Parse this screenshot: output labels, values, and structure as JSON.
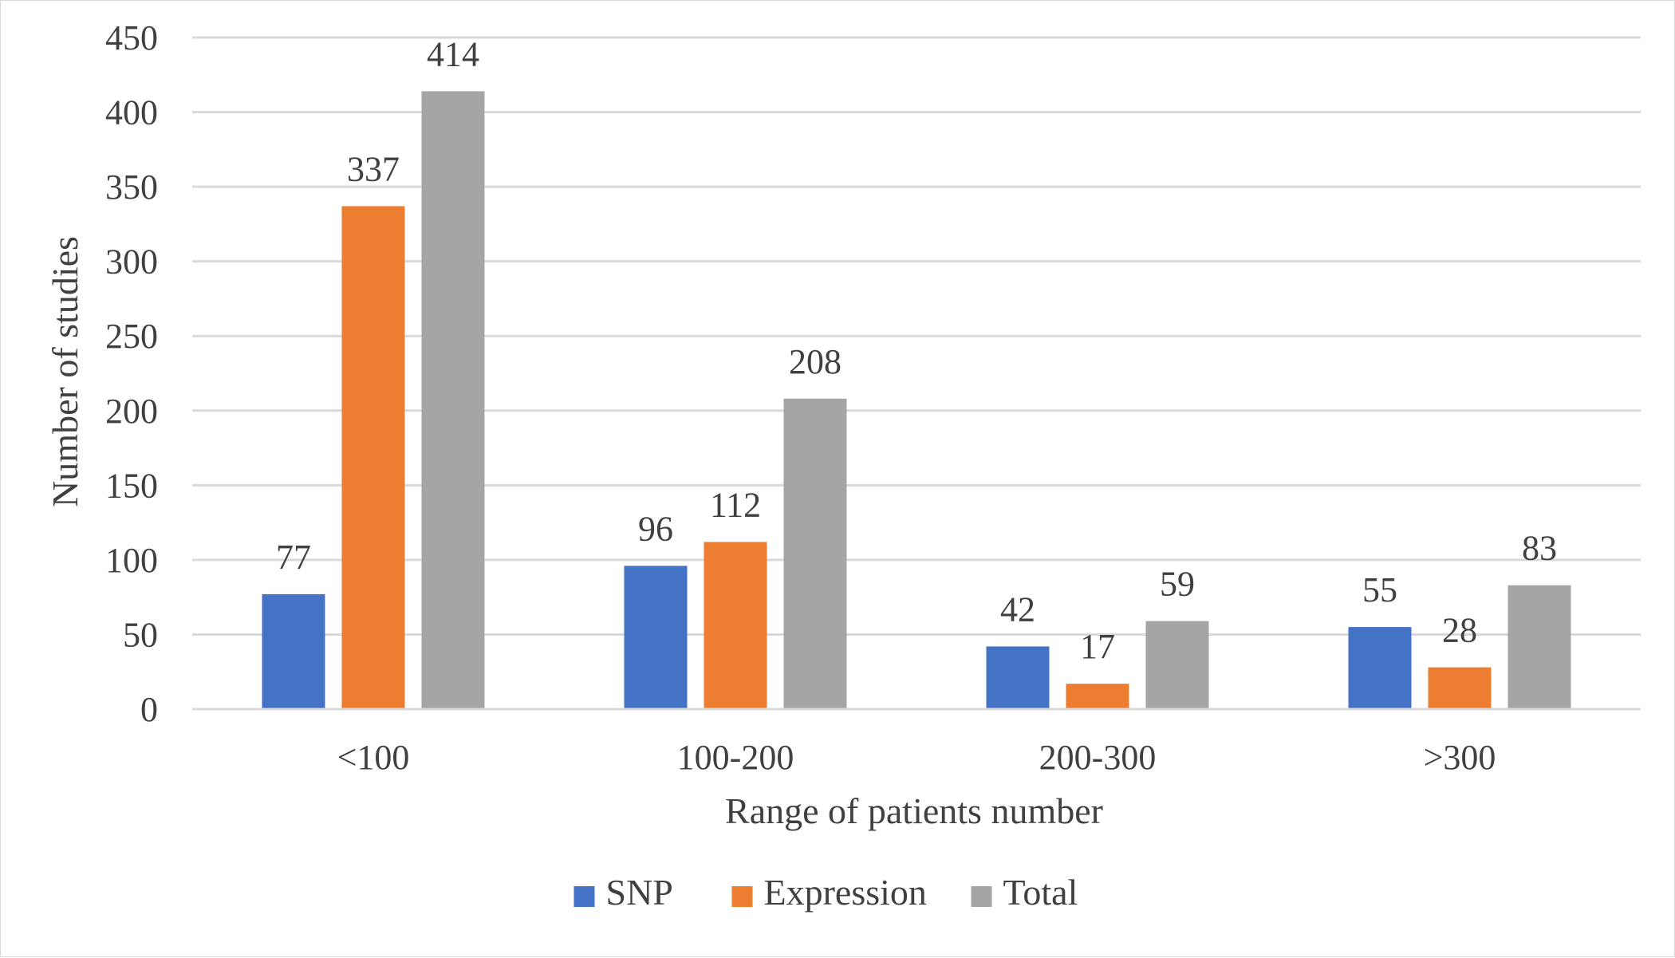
{
  "chart_data": {
    "type": "bar",
    "categories": [
      "<100",
      "100-200",
      "200-300",
      ">300"
    ],
    "series": [
      {
        "name": "SNP",
        "color": "#4472C4",
        "values": [
          77,
          96,
          42,
          55
        ]
      },
      {
        "name": "Expression",
        "color": "#ED7D31",
        "values": [
          337,
          112,
          17,
          28
        ]
      },
      {
        "name": "Total",
        "color": "#A5A5A5",
        "values": [
          414,
          208,
          59,
          83
        ]
      }
    ],
    "xlabel": "Range of patients number",
    "ylabel": "Number of studies",
    "ylim": [
      0,
      450
    ],
    "yticks": [
      0,
      50,
      100,
      150,
      200,
      250,
      300,
      350,
      400,
      450
    ],
    "grid": true,
    "legend_position": "bottom",
    "data_labels": true,
    "gridline_color": "#d9d9d9"
  }
}
